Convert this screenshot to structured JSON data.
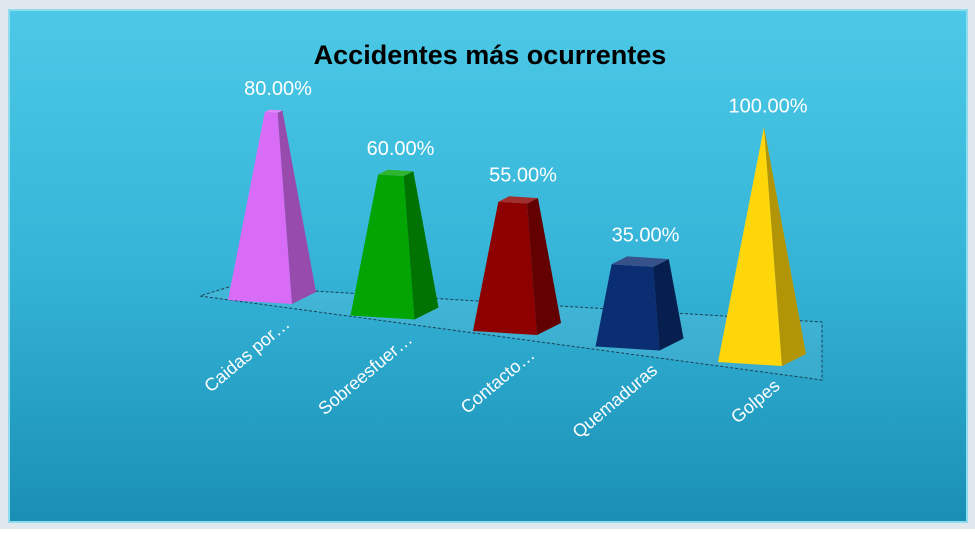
{
  "chart_data": {
    "type": "pyramid",
    "title": "Accidentes más ocurrentes",
    "categories": [
      "Caidas por…",
      "Sobreesfuer…",
      "Contacto…",
      "Quemaduras",
      "Golpes"
    ],
    "values": [
      80,
      60,
      55,
      35,
      100
    ],
    "value_labels": [
      "80.00%",
      "60.00%",
      "55.00%",
      "35.00%",
      "100.00%"
    ],
    "colors": [
      "#d96cf7",
      "#02a502",
      "#8e0000",
      "#0b2d72",
      "#ffd60a"
    ]
  }
}
